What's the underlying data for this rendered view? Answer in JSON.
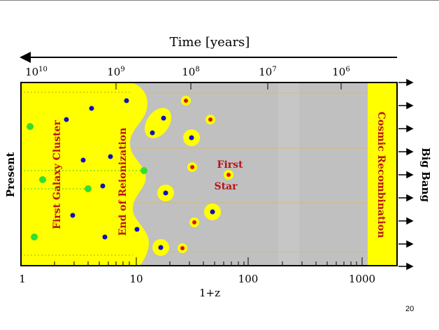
{
  "time_axis": {
    "title": "Time [years]",
    "ticks": [
      {
        "base": "10",
        "exp": "10"
      },
      {
        "base": "10",
        "exp": "9"
      },
      {
        "base": "10",
        "exp": "8"
      },
      {
        "base": "10",
        "exp": "7"
      },
      {
        "base": "10",
        "exp": "6"
      }
    ]
  },
  "z_axis": {
    "title": "1+z",
    "ticks": [
      "1",
      "10",
      "100",
      "1000"
    ]
  },
  "labels": {
    "present": "Present",
    "big_bang": "Big Bang",
    "first_galaxy_cluster": "First Galaxy Cluster",
    "end_of_reionization": "End of Reionization",
    "first_star_line1": "First",
    "first_star_line2": "Star",
    "cosmic_recombination": "Cosmic Recombination"
  },
  "page_number": "20",
  "colors": {
    "yellow": "#ffff00",
    "gray": "#c0c0c0",
    "label_red": "#b81414",
    "blue_dot": "#1010c0",
    "green_dot": "#33dd33",
    "red_dot": "#e01010"
  }
}
